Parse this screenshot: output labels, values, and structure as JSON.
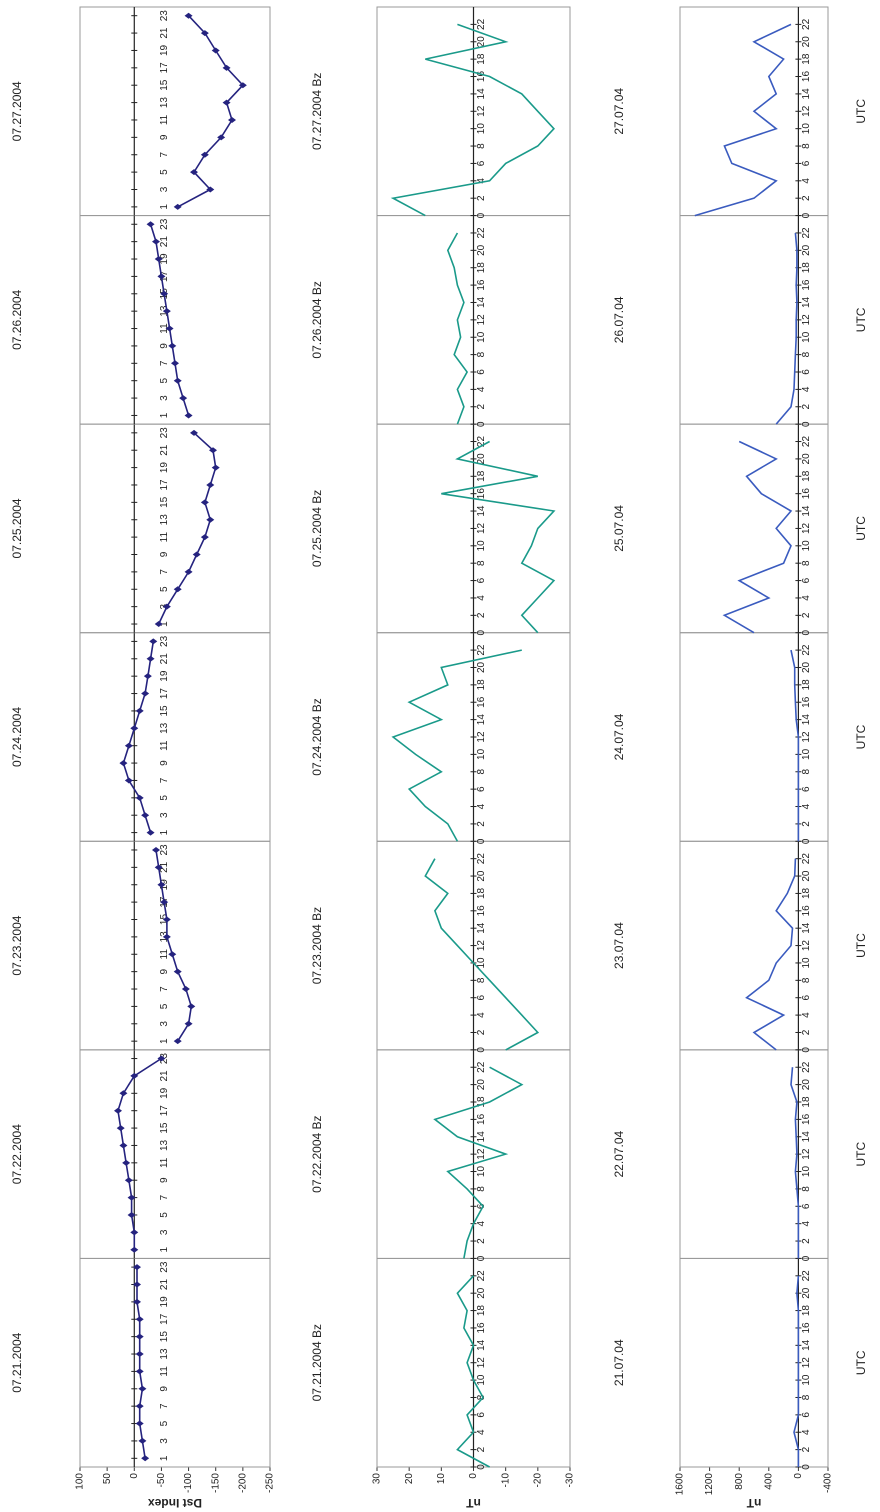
{
  "chart_data": [
    {
      "type": "line",
      "ylabel": "Dst Index",
      "color": "#25237f",
      "markers": true,
      "xlim": [
        0,
        24
      ],
      "ylim": [
        -250,
        100
      ],
      "yticks": [
        100,
        50,
        0,
        -50,
        -100,
        -150,
        -200,
        -250
      ],
      "x": [
        1,
        3,
        5,
        7,
        9,
        11,
        13,
        15,
        17,
        19,
        21,
        23
      ],
      "xticks": [
        1,
        3,
        5,
        7,
        9,
        11,
        13,
        15,
        17,
        19,
        21,
        23
      ],
      "panels": [
        {
          "title": "07.21.2004",
          "values": [
            -20,
            -15,
            -10,
            -10,
            -15,
            -10,
            -10,
            -10,
            -10,
            -5,
            -5,
            -5
          ]
        },
        {
          "title": "07.22.2004",
          "values": [
            0,
            0,
            5,
            5,
            10,
            15,
            20,
            25,
            30,
            20,
            0,
            -50
          ]
        },
        {
          "title": "07.23.2004",
          "values": [
            -80,
            -100,
            -105,
            -95,
            -80,
            -70,
            -60,
            -60,
            -55,
            -50,
            -45,
            -40
          ]
        },
        {
          "title": "07.24.2004",
          "values": [
            -30,
            -20,
            -10,
            10,
            20,
            10,
            0,
            -10,
            -20,
            -25,
            -30,
            -35
          ]
        },
        {
          "title": "07.25.2004",
          "values": [
            -45,
            -60,
            -80,
            -100,
            -115,
            -130,
            -140,
            -130,
            -140,
            -150,
            -145,
            -110
          ]
        },
        {
          "title": "07.26.2004",
          "values": [
            -100,
            -90,
            -80,
            -75,
            -70,
            -65,
            -60,
            -55,
            -50,
            -45,
            -40,
            -30
          ]
        },
        {
          "title": "07.27.2004",
          "values": [
            -80,
            -140,
            -110,
            -130,
            -160,
            -180,
            -170,
            -200,
            -170,
            -150,
            -130,
            -100
          ]
        }
      ]
    },
    {
      "type": "line",
      "ylabel": "nT",
      "color": "#1a9a8a",
      "markers": false,
      "xlim": [
        0,
        24
      ],
      "ylim": [
        -30,
        30
      ],
      "yticks": [
        30,
        20,
        10,
        0,
        -10,
        -20,
        -30
      ],
      "x": [
        0,
        2,
        4,
        6,
        8,
        10,
        12,
        14,
        16,
        18,
        20,
        22
      ],
      "xticks": [
        0,
        2,
        4,
        6,
        8,
        10,
        12,
        14,
        16,
        18,
        20,
        22
      ],
      "panels": [
        {
          "title": "07.21.2004 Bz",
          "values": [
            -5,
            5,
            0,
            2,
            -3,
            0,
            2,
            0,
            3,
            2,
            5,
            0
          ]
        },
        {
          "title": "07.22.2004 Bz",
          "values": [
            3,
            2,
            0,
            -3,
            2,
            8,
            -10,
            5,
            12,
            -5,
            -15,
            -5
          ]
        },
        {
          "title": "07.23.2004 Bz",
          "values": [
            -10,
            -20,
            -15,
            -10,
            -5,
            0,
            5,
            10,
            12,
            8,
            15,
            12
          ]
        },
        {
          "title": "07.24.2004 Bz",
          "values": [
            5,
            8,
            15,
            20,
            10,
            18,
            25,
            10,
            20,
            8,
            10,
            -15
          ]
        },
        {
          "title": "07.25.2004 Bz",
          "values": [
            -20,
            -15,
            -20,
            -25,
            -15,
            -18,
            -20,
            -25,
            10,
            -20,
            5,
            -5
          ]
        },
        {
          "title": "07.26.2004 Bz",
          "values": [
            5,
            3,
            5,
            2,
            6,
            4,
            5,
            3,
            5,
            6,
            8,
            5
          ]
        },
        {
          "title": "07.27.2004 Bz",
          "values": [
            15,
            25,
            -5,
            -10,
            -20,
            -25,
            -20,
            -15,
            -5,
            15,
            -10,
            5
          ]
        }
      ]
    },
    {
      "type": "line",
      "ylabel": "nT",
      "xlabel": "UTC",
      "color": "#3a5bbf",
      "markers": false,
      "xlim": [
        0,
        24
      ],
      "ylim": [
        -400,
        1600
      ],
      "yticks": [
        1600,
        1200,
        800,
        400,
        0,
        -400
      ],
      "x": [
        0,
        2,
        4,
        6,
        8,
        10,
        12,
        14,
        16,
        18,
        20,
        22
      ],
      "xticks": [
        0,
        2,
        4,
        6,
        8,
        10,
        12,
        14,
        16,
        18,
        20,
        22
      ],
      "panels": [
        {
          "title": "21.07.04",
          "values": [
            0,
            0,
            60,
            0,
            0,
            0,
            0,
            0,
            0,
            0,
            20,
            0
          ]
        },
        {
          "title": "22.07.04",
          "values": [
            0,
            0,
            0,
            0,
            20,
            40,
            20,
            30,
            40,
            20,
            100,
            80
          ]
        },
        {
          "title": "23.07.04",
          "values": [
            300,
            600,
            200,
            700,
            400,
            300,
            100,
            80,
            300,
            150,
            50,
            40
          ]
        },
        {
          "title": "24.07.04",
          "values": [
            0,
            0,
            0,
            0,
            0,
            0,
            0,
            30,
            40,
            50,
            50,
            100
          ]
        },
        {
          "title": "25.07.04",
          "values": [
            600,
            1000,
            400,
            800,
            200,
            100,
            300,
            100,
            500,
            700,
            300,
            800
          ]
        },
        {
          "title": "26.07.04",
          "values": [
            300,
            100,
            60,
            50,
            40,
            30,
            30,
            20,
            30,
            20,
            20,
            40
          ]
        },
        {
          "title": "27.07.04",
          "values": [
            1400,
            600,
            300,
            900,
            1000,
            300,
            600,
            300,
            400,
            200,
            600,
            100
          ]
        }
      ]
    }
  ]
}
